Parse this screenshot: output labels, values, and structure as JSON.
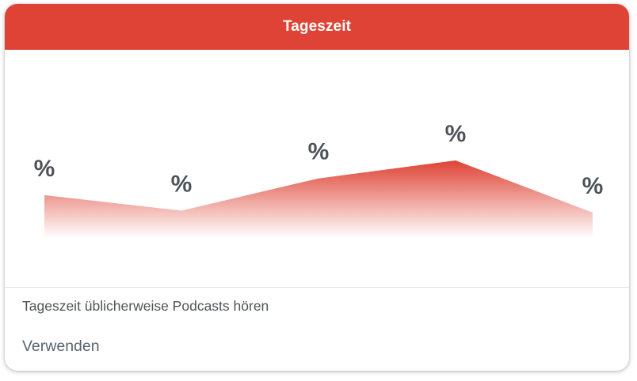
{
  "card": {
    "title": "Tageszeit",
    "description": "Tageszeit üblicherweise Podcasts hören",
    "action_label": "Verwenden"
  },
  "colors": {
    "header_bg": "#de4335",
    "area_fill": "#de4335",
    "label_color": "#4c5258"
  },
  "chart_data": {
    "type": "area",
    "x": [
      1,
      2,
      3,
      4,
      5
    ],
    "series": [
      {
        "values": [
          0.44,
          0.19,
          0.71,
          1.0,
          0.16
        ]
      }
    ],
    "point_labels": [
      "%",
      "%",
      "%",
      "%",
      "%"
    ],
    "ylim": [
      -0.25,
      1.0
    ],
    "grid": false,
    "legend": "none"
  }
}
